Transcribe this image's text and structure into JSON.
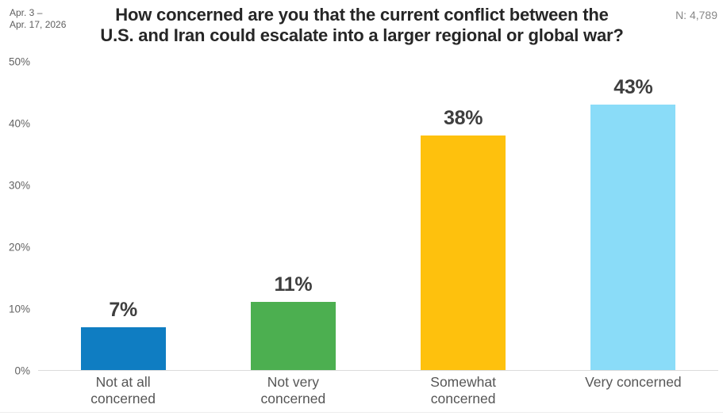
{
  "header": {
    "date_line1": "Apr. 3 –",
    "date_line2": "Apr. 17, 2026",
    "title_line1": "How concerned are you that the current conflict between the",
    "title_line2": "U.S. and Iran could escalate into a larger regional or global war?",
    "sample_size_label": "N: 4,789"
  },
  "chart_data": {
    "type": "bar",
    "title": "How concerned are you that the current conflict between the U.S. and Iran could escalate into a larger regional or global war?",
    "date_range": "Apr. 3 – Apr. 17, 2026",
    "sample_size": "N: 4,789",
    "categories": [
      "Not at all concerned",
      "Not very concerned",
      "Somewhat concerned",
      "Very concerned"
    ],
    "values": [
      7,
      11,
      38,
      43
    ],
    "value_labels": [
      "7%",
      "11%",
      "38%",
      "43%"
    ],
    "bar_colors": [
      "#0f7dc2",
      "#4caf50",
      "#fec10d",
      "#8adcf8"
    ],
    "y_ticks": [
      "50%",
      "40%",
      "30%",
      "20%",
      "10%",
      "0%"
    ],
    "y_tick_values": [
      50,
      40,
      30,
      20,
      10,
      0
    ],
    "ylim": [
      0,
      50
    ],
    "xlabel": "",
    "ylabel": "",
    "grid": false,
    "legend": false,
    "baseline_color": "#dcdcdc",
    "text_colors": {
      "title": "#262626",
      "value_label": "#3e3e3e",
      "category_label": "#565656",
      "axis_tick": "#636363",
      "meta": "#878787"
    }
  }
}
